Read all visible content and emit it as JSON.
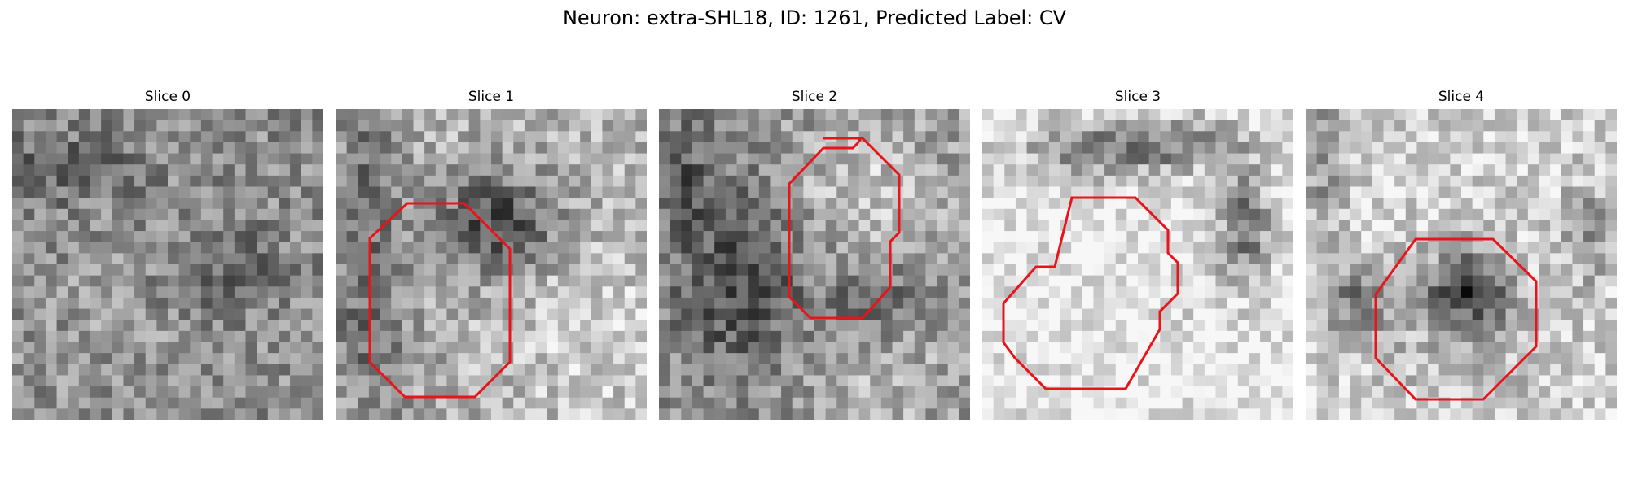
{
  "figure": {
    "suptitle": "Neuron: extra-SHL18, ID: 1261, Predicted Label: CV"
  },
  "panels": [
    {
      "title": "Slice 0",
      "has_roi": false,
      "seed": 11,
      "darkness": "mottled"
    },
    {
      "title": "Slice 1",
      "has_roi": true,
      "seed": 23,
      "darkness": "dark-upper-center"
    },
    {
      "title": "Slice 2",
      "has_roi": true,
      "seed": 37,
      "darkness": "mixed"
    },
    {
      "title": "Slice 3",
      "has_roi": true,
      "seed": 41,
      "darkness": "light-with-dark-arc"
    },
    {
      "title": "Slice 4",
      "has_roi": true,
      "seed": 53,
      "darkness": "light-with-dark-center"
    }
  ],
  "colors": {
    "roi_outline": "#e8141a",
    "background": "#ffffff"
  }
}
